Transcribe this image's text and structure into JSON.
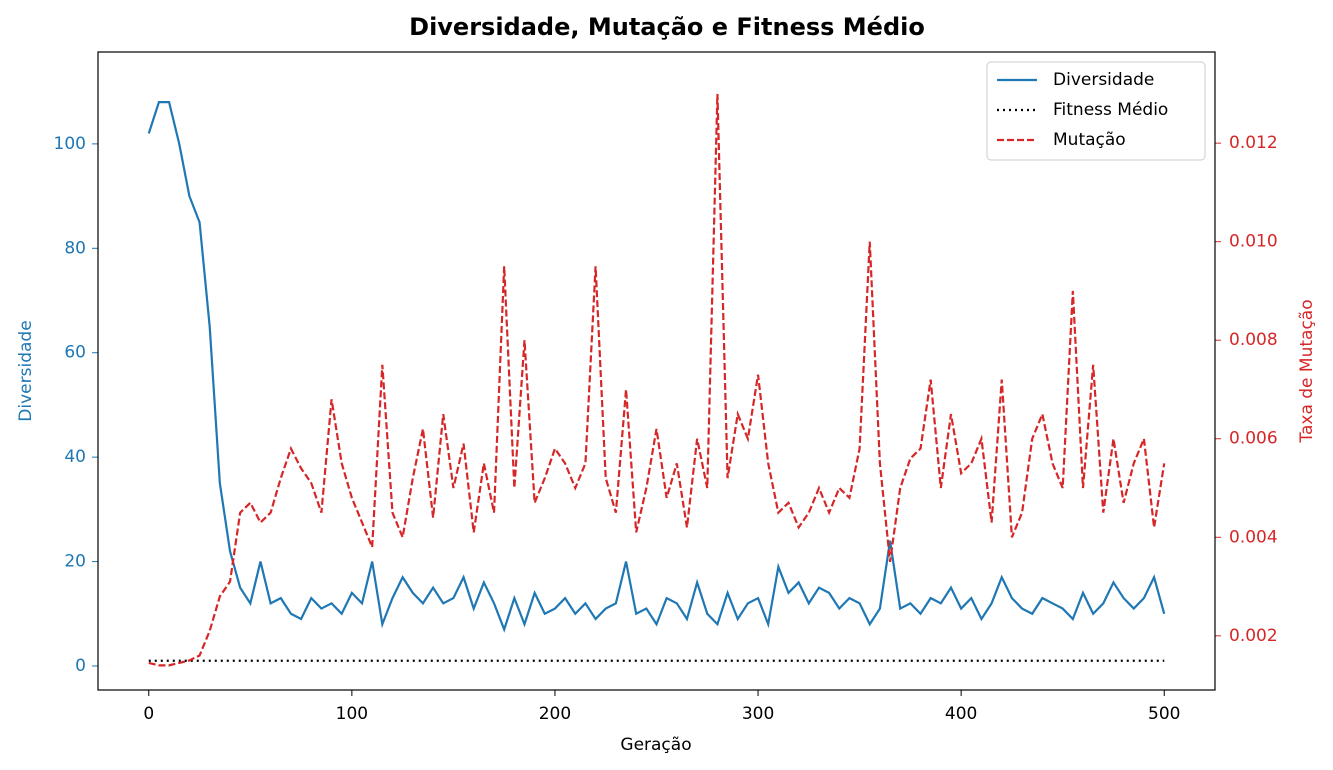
{
  "chart_data": {
    "type": "line",
    "title": "Diversidade, Mutação e Fitness Médio",
    "xlabel": "Geração",
    "ylabel": "Diversidade",
    "y2label": "Taxa de Mutação",
    "x": [
      0,
      5,
      10,
      15,
      20,
      25,
      30,
      35,
      40,
      45,
      50,
      55,
      60,
      65,
      70,
      75,
      80,
      85,
      90,
      95,
      100,
      105,
      110,
      115,
      120,
      125,
      130,
      135,
      140,
      145,
      150,
      155,
      160,
      165,
      170,
      175,
      180,
      185,
      190,
      195,
      200,
      205,
      210,
      215,
      220,
      225,
      230,
      235,
      240,
      245,
      250,
      255,
      260,
      265,
      270,
      275,
      280,
      285,
      290,
      295,
      300,
      305,
      310,
      315,
      320,
      325,
      330,
      335,
      340,
      345,
      350,
      355,
      360,
      365,
      370,
      375,
      380,
      385,
      390,
      395,
      400,
      405,
      410,
      415,
      420,
      425,
      430,
      435,
      440,
      445,
      450,
      455,
      460,
      465,
      470,
      475,
      480,
      485,
      490,
      495,
      500
    ],
    "series": [
      {
        "name": "Diversidade",
        "color": "#1f77b4",
        "dash": "solid",
        "axis": "y",
        "values": [
          102,
          108,
          108,
          100,
          90,
          85,
          65,
          35,
          22,
          15,
          12,
          20,
          12,
          13,
          10,
          9,
          13,
          11,
          12,
          10,
          14,
          12,
          20,
          8,
          13,
          17,
          14,
          12,
          15,
          12,
          13,
          17,
          11,
          16,
          12,
          7,
          13,
          8,
          14,
          10,
          11,
          13,
          10,
          12,
          9,
          11,
          12,
          20,
          10,
          11,
          8,
          13,
          12,
          9,
          16,
          10,
          8,
          14,
          9,
          12,
          13,
          8,
          19,
          14,
          16,
          12,
          15,
          14,
          11,
          13,
          12,
          8,
          11,
          24,
          11,
          12,
          10,
          13,
          12,
          15,
          11,
          13,
          9,
          12,
          17,
          13,
          11,
          10,
          13,
          12,
          11,
          9,
          14,
          10,
          12,
          16,
          13,
          11,
          13,
          17,
          10
        ]
      },
      {
        "name": "Fitness Médio",
        "color": "#000000",
        "dash": "dotted",
        "axis": "y",
        "values": [
          1,
          1,
          1,
          1,
          1,
          1,
          1,
          1,
          1,
          1,
          1,
          1,
          1,
          1,
          1,
          1,
          1,
          1,
          1,
          1,
          1,
          1,
          1,
          1,
          1,
          1,
          1,
          1,
          1,
          1,
          1,
          1,
          1,
          1,
          1,
          1,
          1,
          1,
          1,
          1,
          1,
          1,
          1,
          1,
          1,
          1,
          1,
          1,
          1,
          1,
          1,
          1,
          1,
          1,
          1,
          1,
          1,
          1,
          1,
          1,
          1,
          1,
          1,
          1,
          1,
          1,
          1,
          1,
          1,
          1,
          1,
          1,
          1,
          1,
          1,
          1,
          1,
          1,
          1,
          1,
          1,
          1,
          1,
          1,
          1,
          1,
          1,
          1,
          1,
          1,
          1,
          1,
          1,
          1,
          1,
          1,
          1,
          1,
          1,
          1,
          1
        ]
      },
      {
        "name": "Mutação",
        "color": "#d62728",
        "dash": "dashed",
        "axis": "y2",
        "values": [
          0.00145,
          0.0014,
          0.0014,
          0.00145,
          0.0015,
          0.0016,
          0.0021,
          0.0028,
          0.0031,
          0.0045,
          0.0047,
          0.0043,
          0.0045,
          0.0052,
          0.0058,
          0.0054,
          0.0051,
          0.0045,
          0.0068,
          0.0055,
          0.0048,
          0.0043,
          0.0038,
          0.0075,
          0.0045,
          0.004,
          0.0052,
          0.0062,
          0.0044,
          0.0065,
          0.005,
          0.0059,
          0.0041,
          0.0055,
          0.0045,
          0.0095,
          0.005,
          0.008,
          0.0047,
          0.0052,
          0.0058,
          0.0055,
          0.005,
          0.0055,
          0.0095,
          0.0052,
          0.0045,
          0.007,
          0.0041,
          0.005,
          0.0062,
          0.0048,
          0.0055,
          0.0042,
          0.006,
          0.005,
          0.013,
          0.0052,
          0.0065,
          0.006,
          0.0073,
          0.0055,
          0.0045,
          0.0047,
          0.0042,
          0.0045,
          0.005,
          0.0045,
          0.005,
          0.0048,
          0.0058,
          0.01,
          0.0055,
          0.0035,
          0.005,
          0.0056,
          0.0058,
          0.0072,
          0.005,
          0.0065,
          0.0053,
          0.0055,
          0.006,
          0.0043,
          0.0072,
          0.004,
          0.0045,
          0.006,
          0.0065,
          0.0055,
          0.005,
          0.009,
          0.005,
          0.0075,
          0.0045,
          0.006,
          0.0047,
          0.0055,
          0.006,
          0.0042,
          0.0055
        ]
      }
    ],
    "xlim": [
      -25,
      525
    ],
    "xticks": [
      0,
      100,
      200,
      300,
      400,
      500
    ],
    "ylim": [
      -4.6,
      117.6
    ],
    "yticks": [
      0,
      20,
      40,
      60,
      80,
      100
    ],
    "y2lim": [
      0.0009,
      0.01385
    ],
    "y2ticks": [
      0.002,
      0.004,
      0.006,
      {
        "value": 0.01,
        "label": "0.010"
      },
      0.012,
      0.008
    ],
    "legend": "upper right"
  }
}
